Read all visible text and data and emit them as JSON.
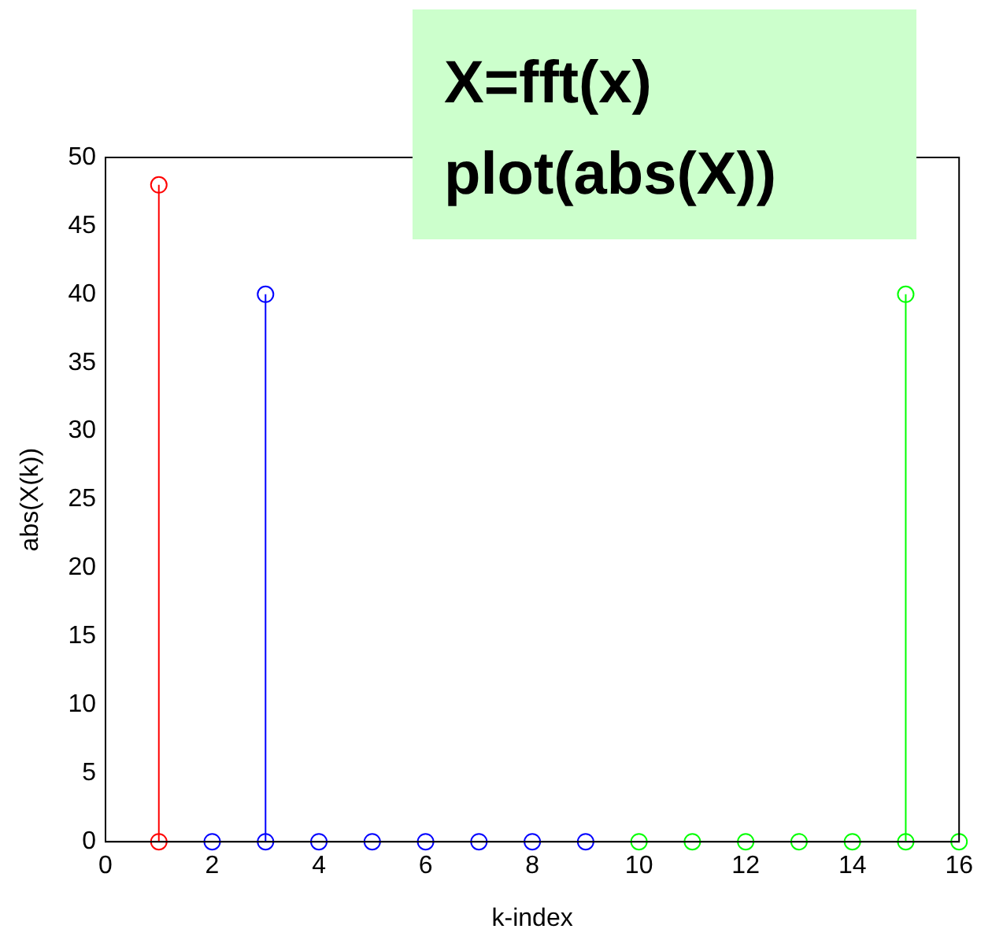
{
  "chart_data": {
    "type": "lollipop",
    "xlabel": "k-index",
    "ylabel": "abs(X(k))",
    "xlim": [
      0,
      16
    ],
    "xticks": [
      0,
      2,
      4,
      6,
      8,
      10,
      12,
      14,
      16
    ],
    "ylim": [
      0,
      50
    ],
    "yticks": [
      0,
      5,
      10,
      15,
      20,
      25,
      30,
      35,
      40,
      45,
      50
    ],
    "grid": false,
    "legend": false,
    "marker": "circle",
    "annotations": [
      "X=fft(x)",
      "plot(abs(X))"
    ],
    "series": [
      {
        "color": "#ff0000",
        "x": [
          1,
          1
        ],
        "values": [
          48,
          0
        ]
      },
      {
        "color": "#0000ff",
        "x": [
          2,
          3,
          3,
          4,
          5,
          6,
          7,
          8,
          9
        ],
        "values": [
          0,
          40,
          0,
          0,
          0,
          0,
          0,
          0,
          0
        ]
      },
      {
        "color": "#00ff00",
        "x": [
          10,
          11,
          12,
          13,
          14,
          15,
          15,
          16
        ],
        "values": [
          0,
          0,
          0,
          0,
          0,
          40,
          0,
          0
        ]
      }
    ]
  }
}
